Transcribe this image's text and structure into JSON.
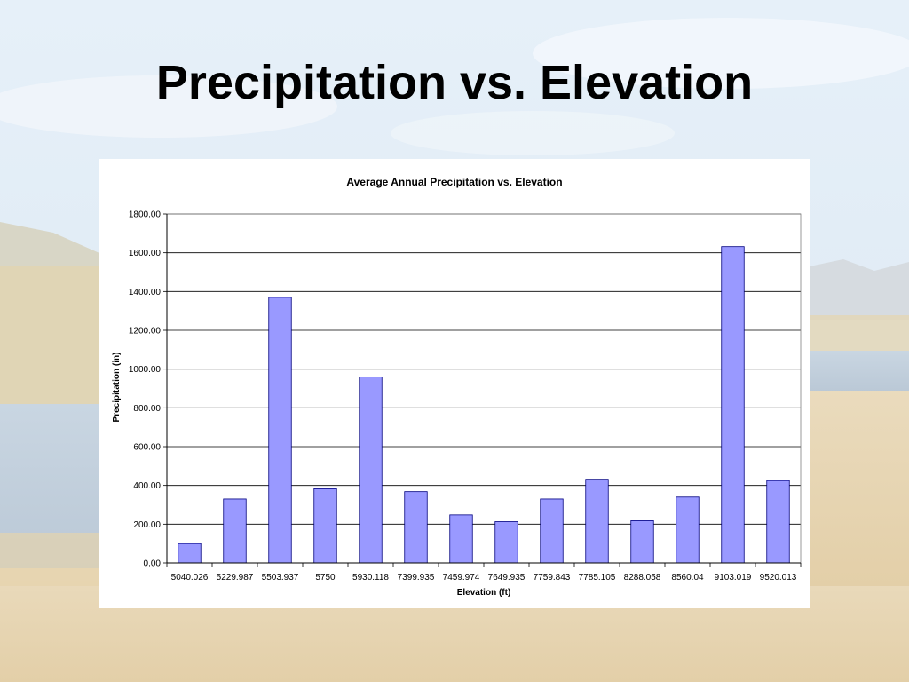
{
  "slide": {
    "title": "Precipitation vs. Elevation"
  },
  "chart_data": {
    "type": "bar",
    "title": "Average Annual Precipitation vs. Elevation",
    "xlabel": "Elevation (ft)",
    "ylabel": "Precipitation (in)",
    "categories": [
      "5040.026",
      "5229.987",
      "5503.937",
      "5750",
      "5930.118",
      "7399.935",
      "7459.974",
      "7649.935",
      "7759.843",
      "7785.105",
      "8288.058",
      "8560.04",
      "9103.019",
      "9520.013"
    ],
    "values": [
      100,
      330,
      1370,
      383,
      960,
      368,
      248,
      213,
      330,
      432,
      218,
      340,
      1632,
      425
    ],
    "ylim": [
      0,
      1800
    ],
    "yticks": [
      "0.00",
      "200.00",
      "400.00",
      "600.00",
      "800.00",
      "1000.00",
      "1200.00",
      "1400.00",
      "1600.00",
      "1800.00"
    ],
    "grid": true,
    "bar_color": "#9999ff",
    "bar_edge_color": "#000080"
  }
}
